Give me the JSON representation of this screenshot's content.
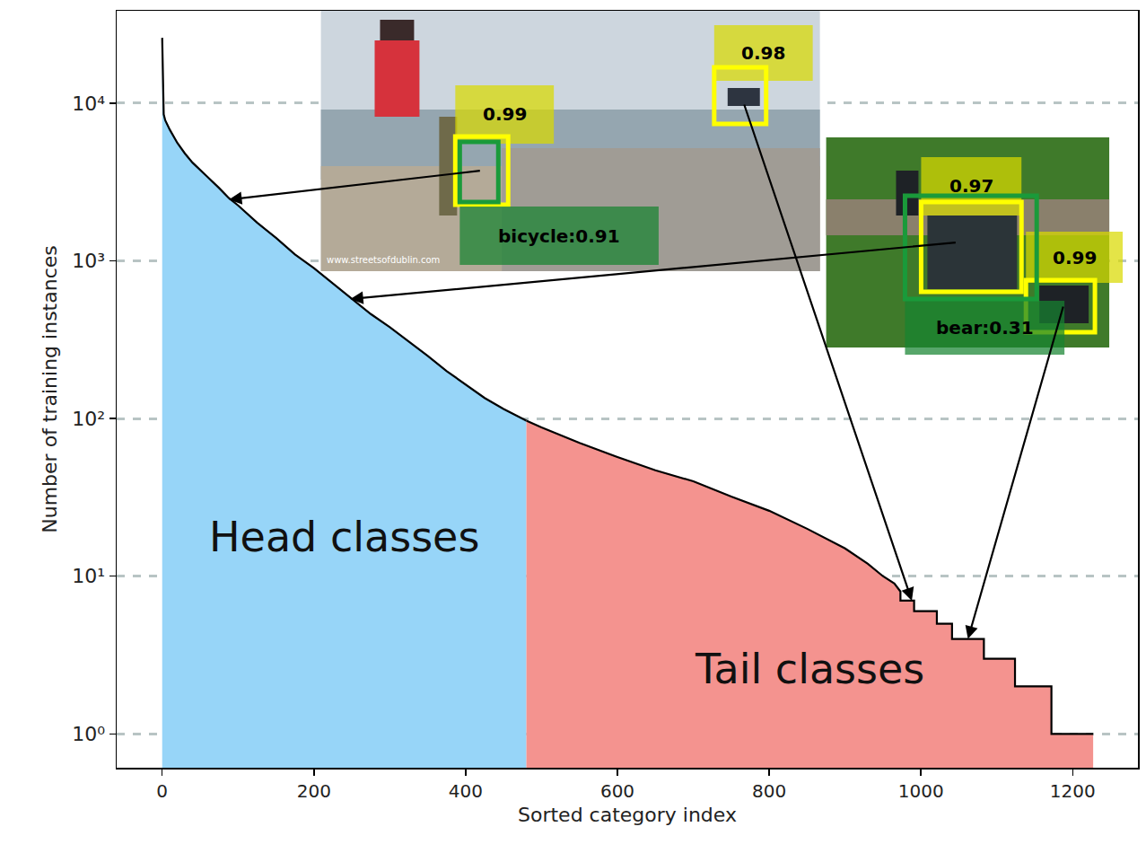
{
  "chart_data": {
    "type": "line",
    "xlabel": "Sorted category index",
    "ylabel": "Number of training instances",
    "log": "y",
    "grid": true,
    "xlim": [
      -60,
      1286
    ],
    "ylim": [
      0.61,
      38600
    ],
    "xticks": [
      0,
      200,
      400,
      600,
      800,
      1000,
      1200
    ],
    "yticks": [
      {
        "value": 1,
        "label": "10⁰"
      },
      {
        "value": 10,
        "label": "10¹"
      },
      {
        "value": 100,
        "label": "10²"
      },
      {
        "value": 1000,
        "label": "10³"
      },
      {
        "value": 10000,
        "label": "10⁴"
      }
    ],
    "series": [
      {
        "name": "Head classes",
        "color": "#97d5f8",
        "x": [
          0,
          1,
          2,
          4,
          10,
          20,
          30,
          40,
          50,
          60,
          75,
          88,
          100,
          125,
          150,
          175,
          200,
          225,
          250,
          275,
          300,
          325,
          350,
          375,
          400,
          425,
          450,
          480
        ],
        "values": [
          26000,
          12000,
          8500,
          7800,
          6800,
          5600,
          4800,
          4200,
          3800,
          3400,
          2900,
          2500,
          2250,
          1750,
          1400,
          1100,
          900,
          720,
          570,
          460,
          380,
          310,
          250,
          200,
          165,
          135,
          115,
          97
        ]
      },
      {
        "name": "Tail classes",
        "color": "#f4938f",
        "x": [
          480,
          500,
          550,
          600,
          650,
          700,
          750,
          800,
          850,
          900,
          930,
          950,
          965,
          973,
          973,
          991,
          991,
          1021,
          1021,
          1041,
          1041,
          1083,
          1083,
          1124,
          1124,
          1172,
          1172,
          1227
        ],
        "values": [
          97,
          88,
          70,
          57,
          47,
          40,
          32,
          26,
          20,
          15,
          12,
          10,
          9,
          8,
          7,
          7,
          6,
          6,
          5,
          5,
          4,
          4,
          3,
          3,
          2,
          2,
          1,
          1
        ]
      }
    ],
    "insets": [
      {
        "watermark": "www.streetsofdublin.com",
        "detections": [
          {
            "label": "0.99",
            "color": "#ffff00",
            "arrow_to": {
              "x": 88,
              "y": 2450
            }
          },
          {
            "label": "bicycle:0.91",
            "color": "#1a9a3a"
          },
          {
            "label": "0.98",
            "color": "#ffff00",
            "arrow_to": {
              "x": 988,
              "y": 7
            }
          }
        ]
      },
      {
        "detections": [
          {
            "label": "0.97",
            "color": "#ffff00",
            "arrow_to": {
              "x": 248,
              "y": 573
            }
          },
          {
            "label": "0.99",
            "color": "#ffff00",
            "arrow_to": {
              "x": 1062,
              "y": 4
            }
          },
          {
            "label": "bear:0.31",
            "color": "#1a9a3a"
          }
        ]
      }
    ]
  }
}
